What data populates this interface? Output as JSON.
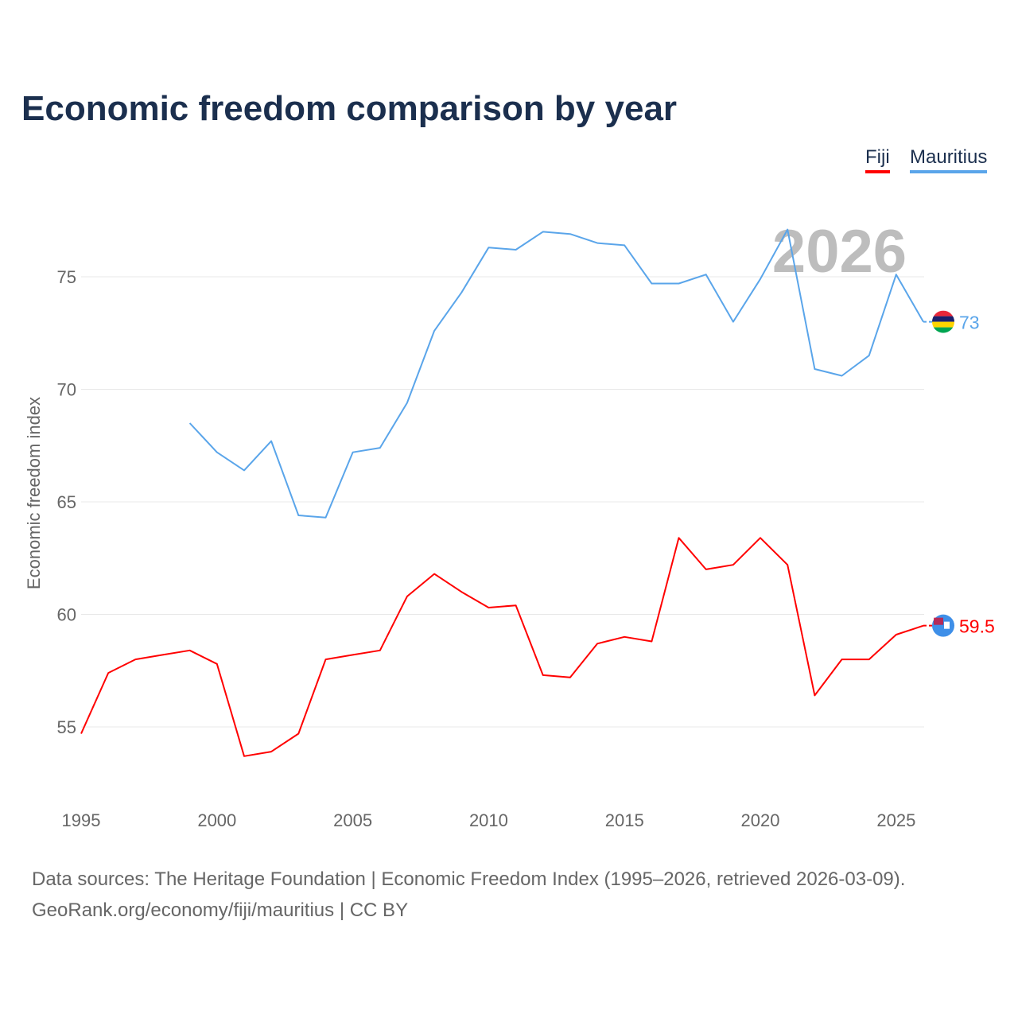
{
  "title": "Economic freedom comparison by year",
  "footer": {
    "line1": "Data sources: The Heritage Foundation | Economic Freedom Index (1995–2026, retrieved 2026-03-09).",
    "line2": "GeoRank.org/economy/fiji/mauritius | CC BY"
  },
  "chart_data": {
    "type": "line",
    "title": "Economic freedom comparison by year",
    "xlabel": "",
    "ylabel": "Economic freedom index",
    "xlim": [
      1995,
      2026
    ],
    "ylim": [
      51.5,
      79.5
    ],
    "xticks": [
      1995,
      2000,
      2005,
      2010,
      2015,
      2020,
      2025
    ],
    "yticks": [
      55,
      60,
      65,
      70,
      75
    ],
    "grid": true,
    "legend_position": "top-right",
    "year_watermark": "2026",
    "series": [
      {
        "name": "Fiji",
        "color": "#ff0000",
        "end_label": "59.5",
        "x": [
          1995,
          1996,
          1997,
          1998,
          1999,
          2000,
          2001,
          2002,
          2003,
          2004,
          2005,
          2006,
          2007,
          2008,
          2009,
          2010,
          2011,
          2012,
          2013,
          2014,
          2015,
          2016,
          2017,
          2018,
          2019,
          2020,
          2021,
          2022,
          2023,
          2024,
          2025,
          2026
        ],
        "values": [
          54.7,
          57.4,
          58.0,
          58.2,
          58.4,
          57.8,
          53.7,
          53.9,
          54.7,
          58.0,
          58.2,
          58.4,
          60.8,
          61.8,
          61.0,
          60.3,
          60.4,
          57.3,
          57.2,
          58.7,
          59.0,
          58.8,
          63.4,
          62.0,
          62.2,
          63.4,
          62.2,
          56.4,
          58.0,
          58.0,
          59.1,
          59.5
        ]
      },
      {
        "name": "Mauritius",
        "color": "#5aa5ea",
        "end_label": "73",
        "x": [
          1999,
          2000,
          2001,
          2002,
          2003,
          2004,
          2005,
          2006,
          2007,
          2008,
          2009,
          2010,
          2011,
          2012,
          2013,
          2014,
          2015,
          2016,
          2017,
          2018,
          2019,
          2020,
          2021,
          2022,
          2023,
          2024,
          2025,
          2026
        ],
        "values": [
          68.5,
          67.2,
          66.4,
          67.7,
          64.4,
          64.3,
          67.2,
          67.4,
          69.4,
          72.6,
          74.3,
          76.3,
          76.2,
          77.0,
          76.9,
          76.5,
          76.4,
          74.7,
          74.7,
          75.1,
          73.0,
          74.9,
          77.1,
          70.9,
          70.6,
          71.5,
          75.1,
          73.0
        ]
      }
    ]
  }
}
